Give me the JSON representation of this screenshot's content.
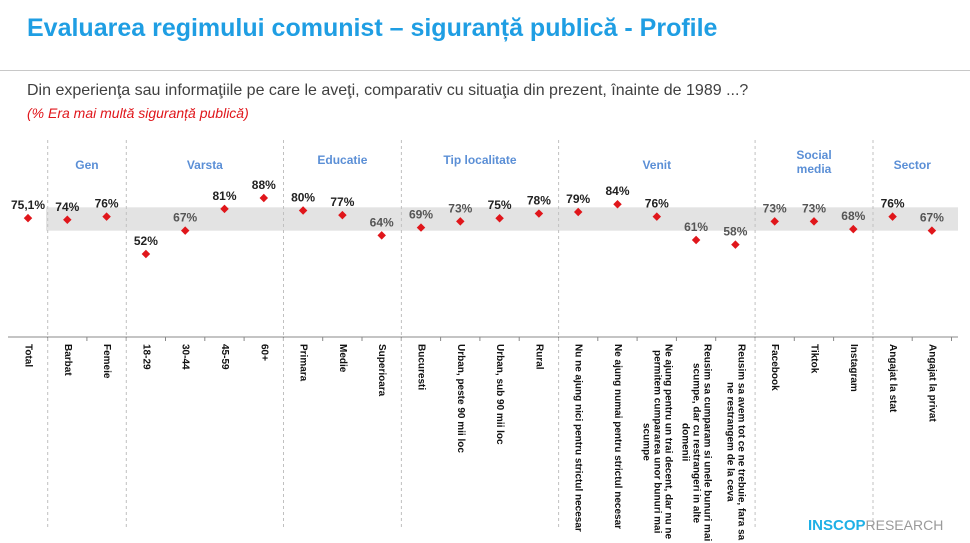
{
  "title": "Evaluarea regimului comunist – siguranță publică - Profile",
  "subtitle": "Din experienţa sau informaţiile pe care le aveţi, comparativ cu situaţia din prezent, înainte de 1989 ...?",
  "note": "(% Era mai multă siguranță publică)",
  "logo": {
    "part1": "INSCOP",
    "part2": "RESEARCH"
  },
  "colors": {
    "title": "#1f9ee3",
    "marker": "#e0161b",
    "group_label": "#5b8fd6",
    "band": "#e3e3e3"
  },
  "chart_data": {
    "type": "scatter",
    "title": "",
    "band": [
      67,
      82
    ],
    "categories": [
      "Total",
      "Barbat",
      "Femeie",
      "18-29",
      "30-44",
      "45-59",
      "60+",
      "Primara",
      "Medie",
      "Superioara",
      "Bucuresti",
      "Urban, peste 90 mii loc",
      "Urban, sub 90 mii loc",
      "Rural",
      "Nu ne ajung nici pentru strictul necesar",
      "Ne ajung numai pentru strictul necesar",
      "Ne ajung pentru un trai decent, dar nu ne\npermitem cumpararea unor bunuri mai\nscumpe",
      "Reusim sa cumparam si unele bunuri mai\nscumpe, dar cu restrangeri in alte\ndomenii",
      "Reusim sa avem tot ce ne trebuie, fara sa\nne restrangem de la ceva",
      "Facebook",
      "Tiktok",
      "Instagram",
      "Angajat la stat",
      "Angajat la privat"
    ],
    "values": [
      75.1,
      74,
      76,
      52,
      67,
      81,
      88,
      80,
      77,
      64,
      69,
      73,
      75,
      78,
      79,
      84,
      76,
      61,
      58,
      73,
      73,
      68,
      76,
      67
    ],
    "value_labels": [
      "75,1%",
      "74%",
      "76%",
      "52%",
      "67%",
      "81%",
      "88%",
      "80%",
      "77%",
      "64%",
      "69%",
      "73%",
      "75%",
      "78%",
      "79%",
      "84%",
      "76%",
      "61%",
      "58%",
      "73%",
      "73%",
      "68%",
      "76%",
      "67%"
    ],
    "groups": [
      {
        "label": "Gen",
        "start": 1,
        "end": 2
      },
      {
        "label": "Varsta",
        "start": 3,
        "end": 6
      },
      {
        "label": "Educatie",
        "start": 7,
        "end": 9
      },
      {
        "label": "Tip localitate",
        "start": 10,
        "end": 13
      },
      {
        "label": "Venit",
        "start": 14,
        "end": 18
      },
      {
        "label": "Social\nmedia",
        "start": 19,
        "end": 21
      },
      {
        "label": "Sector",
        "start": 22,
        "end": 23
      }
    ]
  }
}
